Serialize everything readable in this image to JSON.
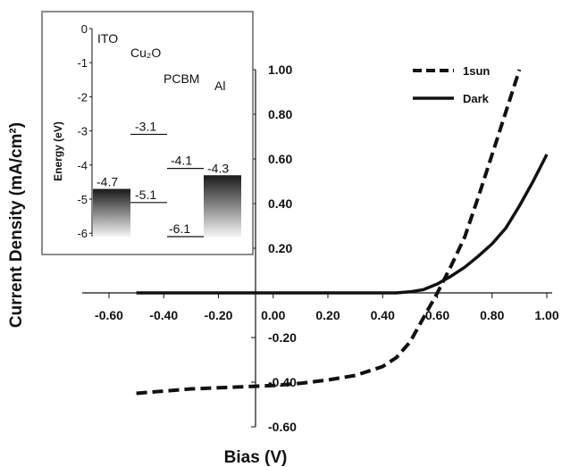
{
  "chart_data": [
    {
      "type": "line",
      "xlabel": "Bias (V)",
      "ylabel": "Current Density (mA/cm²)",
      "xlim": [
        -0.6,
        1.0
      ],
      "ylim": [
        -0.6,
        1.0
      ],
      "x_ticks": [
        "-0.60",
        "-0.40",
        "-0.20",
        "0.00",
        "0.20",
        "0.40",
        "0.60",
        "0.80",
        "1.00"
      ],
      "x_tick_values": [
        -0.6,
        -0.4,
        -0.2,
        0.0,
        0.2,
        0.4,
        0.6,
        0.8,
        1.0
      ],
      "y_ticks": [
        "-0.60",
        "-0.40",
        "-0.20",
        "0.20",
        "0.40",
        "0.60",
        "0.80",
        "1.00"
      ],
      "y_tick_values": [
        -0.6,
        -0.4,
        -0.2,
        0.2,
        0.4,
        0.6,
        0.8,
        1.0
      ],
      "legend_position": "top-right",
      "series": [
        {
          "name": "1sun",
          "style": "dashed",
          "x": [
            -0.5,
            -0.4,
            -0.3,
            -0.2,
            -0.1,
            0.0,
            0.1,
            0.2,
            0.3,
            0.4,
            0.45,
            0.5,
            0.55,
            0.6,
            0.65,
            0.7,
            0.75,
            0.8,
            0.85,
            0.9
          ],
          "y": [
            -0.45,
            -0.44,
            -0.43,
            -0.425,
            -0.42,
            -0.415,
            -0.405,
            -0.39,
            -0.37,
            -0.33,
            -0.29,
            -0.22,
            -0.11,
            0.0,
            0.12,
            0.25,
            0.43,
            0.62,
            0.81,
            1.0
          ]
        },
        {
          "name": "Dark",
          "style": "solid",
          "x": [
            -0.5,
            -0.3,
            -0.1,
            0.1,
            0.3,
            0.45,
            0.5,
            0.55,
            0.6,
            0.65,
            0.7,
            0.75,
            0.8,
            0.85,
            0.9,
            0.95,
            1.0
          ],
          "y": [
            0.0,
            0.0,
            0.0,
            0.0,
            0.0,
            0.0,
            0.005,
            0.015,
            0.04,
            0.075,
            0.115,
            0.165,
            0.22,
            0.29,
            0.39,
            0.5,
            0.62
          ]
        }
      ]
    },
    {
      "type": "energy-diagram",
      "ylabel": "Energy (eV)",
      "ylim": [
        -6.3,
        0
      ],
      "y_ticks": [
        "0",
        "-1",
        "-2",
        "-3",
        "-4",
        "-5",
        "-6"
      ],
      "y_tick_values": [
        0,
        -1,
        -2,
        -3,
        -4,
        -5,
        -6
      ],
      "materials": [
        "ITO",
        "Cu₂O",
        "PCBM",
        "Al"
      ],
      "levels": [
        {
          "label": "-4.7",
          "value": -4.7,
          "kind": "ITO work function"
        },
        {
          "label": "-3.1",
          "value": -3.1,
          "kind": "Cu₂O conduction band"
        },
        {
          "label": "-5.1",
          "value": -5.1,
          "kind": "Cu₂O valence band"
        },
        {
          "label": "-4.1",
          "value": -4.1,
          "kind": "PCBM LUMO"
        },
        {
          "label": "-6.1",
          "value": -6.1,
          "kind": "PCBM HOMO"
        },
        {
          "label": "-4.3",
          "value": -4.3,
          "kind": "Al work function"
        }
      ]
    }
  ]
}
